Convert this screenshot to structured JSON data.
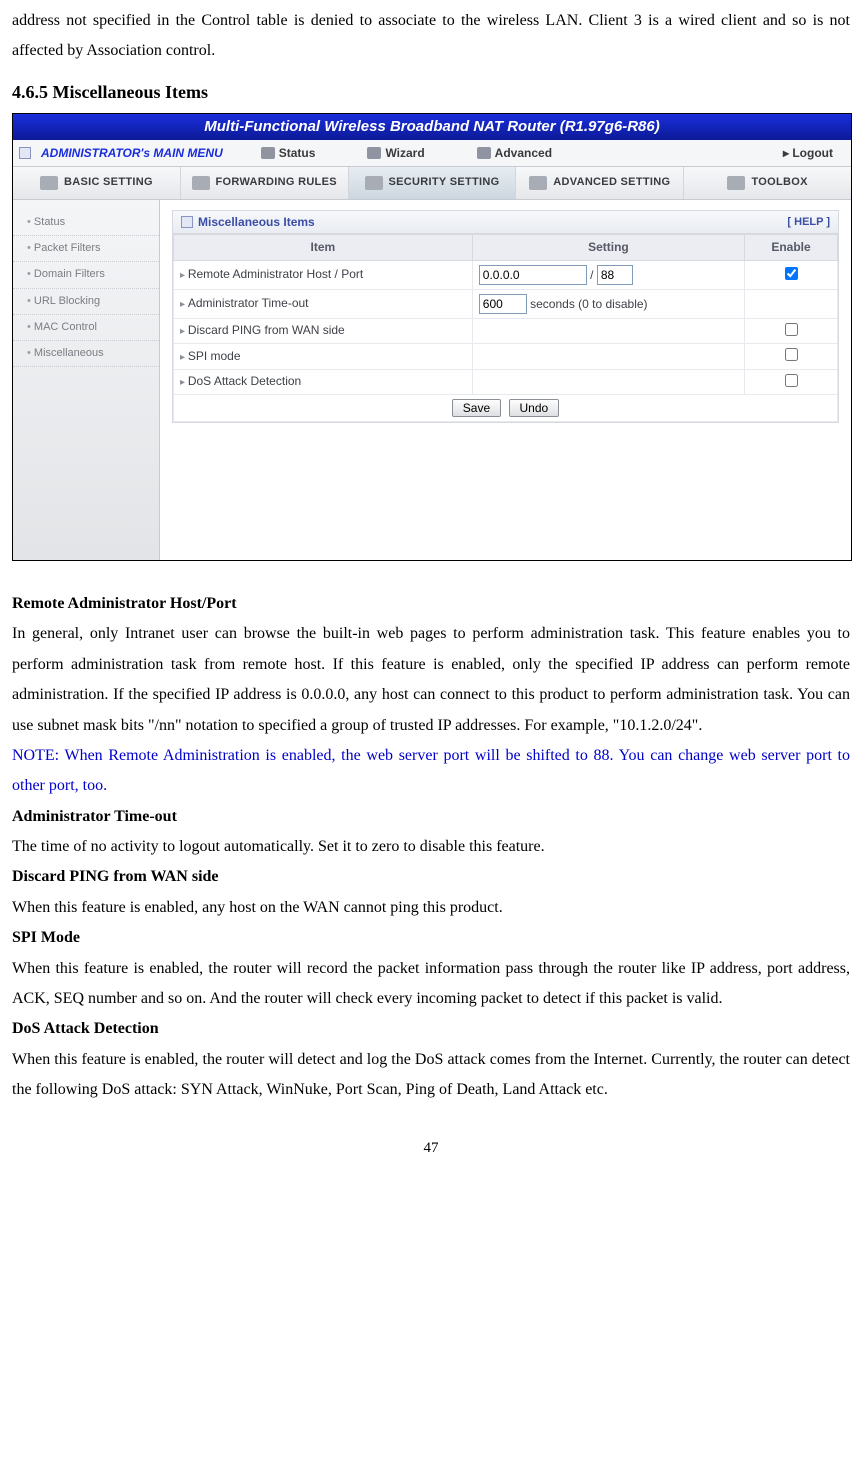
{
  "introParas": [
    "address not specified in the Control table is denied to associate to the wireless LAN. Client 3 is a wired client and so is not affected by Association control."
  ],
  "sectionHeading": "4.6.5 Miscellaneous Items",
  "router": {
    "titleBar": "Multi-Functional Wireless Broadband NAT Router (R1.97g6-R86)",
    "mainMenu": {
      "admin": "ADMINISTRATOR's MAIN MENU",
      "items": [
        "Status",
        "Wizard",
        "Advanced"
      ],
      "logout": "▸ Logout"
    },
    "subTabs": [
      "BASIC SETTING",
      "FORWARDING RULES",
      "SECURITY SETTING",
      "ADVANCED SETTING",
      "TOOLBOX"
    ],
    "activeSubTab": 2,
    "sidebar": [
      "Status",
      "Packet Filters",
      "Domain Filters",
      "URL Blocking",
      "MAC Control",
      "Miscellaneous"
    ],
    "panel": {
      "title": "Miscellaneous Items",
      "help": "[ HELP ]",
      "columns": [
        "Item",
        "Setting",
        "Enable"
      ],
      "rows": [
        {
          "item": "Remote Administrator Host / Port",
          "settingType": "hostport",
          "host": "0.0.0.0",
          "port": "88",
          "enableType": "checkbox",
          "checked": true
        },
        {
          "item": "Administrator Time-out",
          "settingType": "timeout",
          "value": "600",
          "suffix": "seconds (0 to disable)",
          "enableType": "none"
        },
        {
          "item": "Discard PING from WAN side",
          "settingType": "none",
          "enableType": "checkbox",
          "checked": false
        },
        {
          "item": "SPI mode",
          "settingType": "none",
          "enableType": "checkbox",
          "checked": false
        },
        {
          "item": "DoS Attack Detection",
          "settingType": "none",
          "enableType": "checkbox",
          "checked": false
        }
      ],
      "buttons": [
        "Save",
        "Undo"
      ]
    }
  },
  "bodySections": [
    {
      "type": "sub",
      "text": "Remote Administrator Host/Port"
    },
    {
      "type": "para",
      "text": "In general, only Intranet user can browse the built-in web pages to perform administration task. This feature enables you to perform administration task from remote host. If this feature is enabled, only the specified IP address can perform remote administration. If the specified IP address is 0.0.0.0, any host can connect to this product to perform administration task. You can use subnet mask bits \"/nn\" notation to specified a group of trusted IP addresses. For example, \"10.1.2.0/24\"."
    },
    {
      "type": "note",
      "text": "NOTE: When Remote Administration is enabled, the web server port will be shifted to 88. You can change web server port to other port, too."
    },
    {
      "type": "sub",
      "text": "Administrator Time-out"
    },
    {
      "type": "para",
      "text": "The time of no activity to logout automatically. Set it to zero to disable this feature."
    },
    {
      "type": "sub",
      "text": "Discard PING from WAN side"
    },
    {
      "type": "para",
      "text": "When this feature is enabled, any host on the WAN cannot ping this product."
    },
    {
      "type": "sub",
      "text": "SPI Mode"
    },
    {
      "type": "para",
      "text": "When this feature is enabled, the router will record the packet information pass through the router like IP address, port address, ACK, SEQ number and so on. And the router will check every incoming packet to detect if this packet is valid."
    },
    {
      "type": "sub",
      "text": "DoS Attack Detection"
    },
    {
      "type": "para",
      "text": "When this feature is enabled, the router will detect and log the DoS attack comes from the Internet. Currently, the router can detect the following DoS attack: SYN Attack, WinNuke, Port Scan, Ping of Death, Land Attack etc."
    }
  ],
  "pageNumber": "47"
}
